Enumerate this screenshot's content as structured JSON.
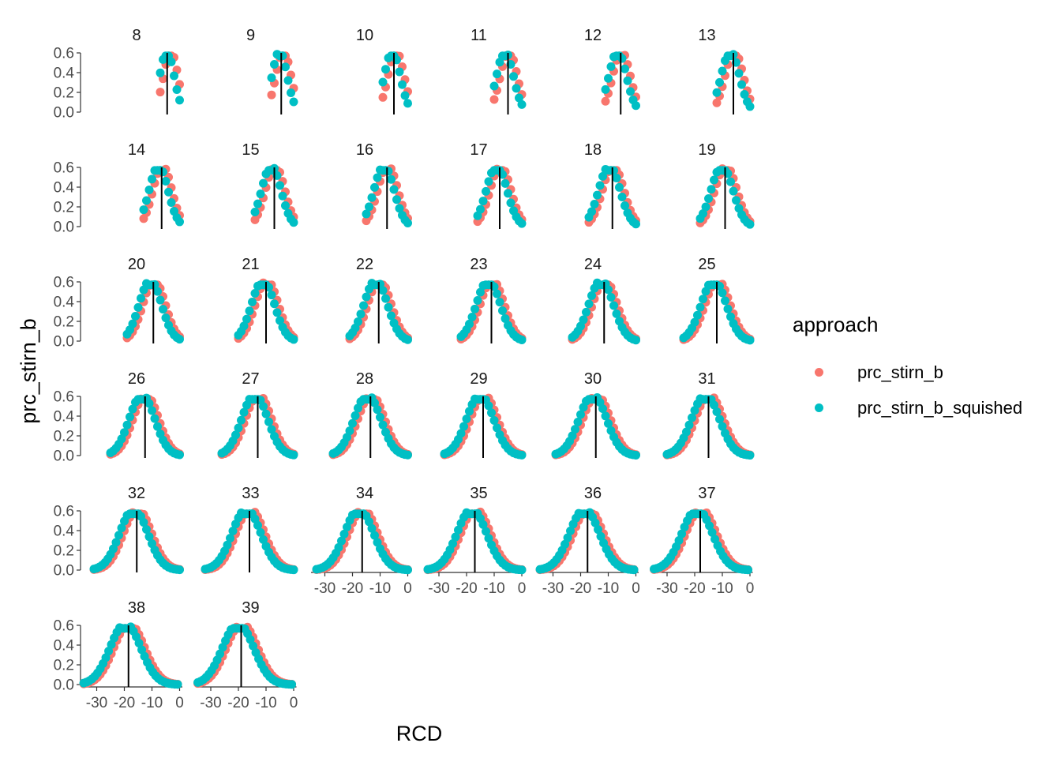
{
  "chart_data": {
    "type": "scatter",
    "facet_by": "n",
    "facets": [
      8,
      9,
      10,
      11,
      12,
      13,
      14,
      15,
      16,
      17,
      18,
      19,
      20,
      21,
      22,
      23,
      24,
      25,
      26,
      27,
      28,
      29,
      30,
      31,
      32,
      33,
      34,
      35,
      36,
      37,
      38,
      39
    ],
    "ncol": 6,
    "xlabel": "RCD",
    "ylabel": "prc_stirn_b",
    "xlim": [
      -35,
      1
    ],
    "ylim": [
      0,
      0.6
    ],
    "x_ticks": [
      -30,
      -20,
      -10,
      0
    ],
    "x_tick_labels": [
      "-30",
      "-20",
      "-10",
      "0"
    ],
    "y_ticks": [
      0,
      0.2,
      0.4,
      0.6
    ],
    "y_tick_labels": [
      "0.0",
      "0.2",
      "0.4",
      "0.6"
    ],
    "vline_x_by_facet": {
      "8": -4.5,
      "9": -4.5,
      "10": -5,
      "11": -5,
      "12": -5.5,
      "13": -6,
      "14": -6.5,
      "15": -7,
      "16": -7.5,
      "17": -8,
      "18": -8.5,
      "19": -9,
      "20": -9.5,
      "21": -10,
      "22": -10.5,
      "23": -11,
      "24": -11.5,
      "25": -12,
      "26": -12.5,
      "27": -13,
      "28": -13.5,
      "29": -14,
      "30": -14.5,
      "31": -15,
      "32": -15.5,
      "33": -16,
      "34": -16.5,
      "35": -17,
      "36": -17.5,
      "37": -18,
      "38": -18.5,
      "39": -19
    },
    "legend": {
      "title": "approach",
      "position": "right",
      "entries": [
        {
          "label": "prc_stirn_b",
          "color": "#F8766D"
        },
        {
          "label": "prc_stirn_b_squished",
          "color": "#00BFC4"
        }
      ]
    },
    "series": [
      {
        "name": "prc_stirn_b",
        "color": "#F8766D",
        "peak_x_offset": 0.8
      },
      {
        "name": "prc_stirn_b_squished",
        "color": "#00BFC4",
        "peak_x_offset": -0.6
      }
    ],
    "grid": false
  }
}
